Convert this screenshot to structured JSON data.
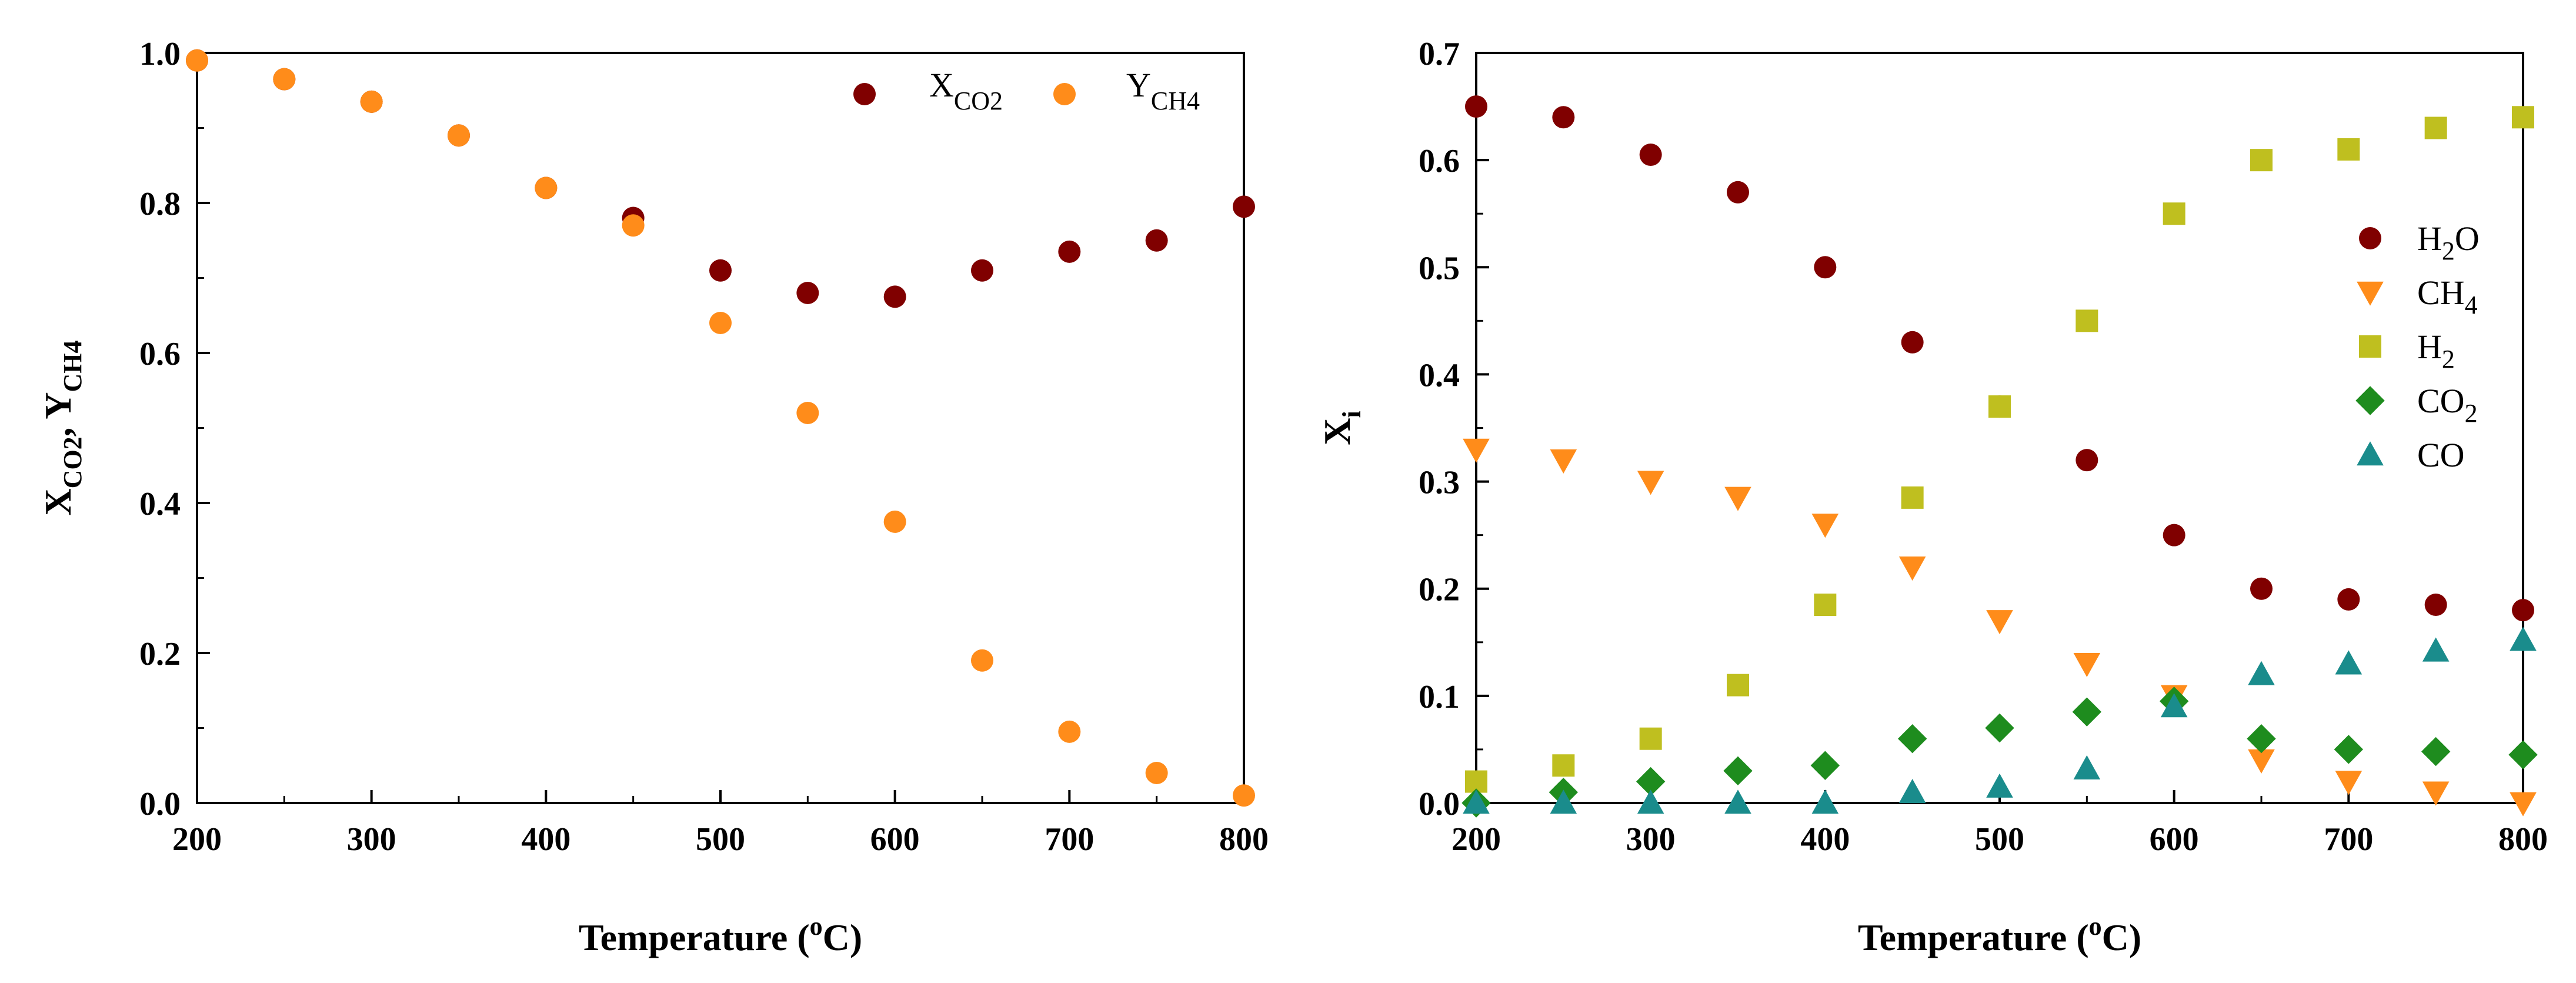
{
  "chart_data": [
    {
      "id": "left",
      "type": "scatter",
      "title": "",
      "xlabel_main": "Temperature (",
      "xlabel_sup": "o",
      "xlabel_end": "C)",
      "ylabel_parts": [
        {
          "t": "X",
          "sub": false
        },
        {
          "t": "CO",
          "sub": true
        },
        {
          "t": "2",
          "sub": true
        },
        {
          "t": ", Y",
          "sub": false
        },
        {
          "t": "CH",
          "sub": true
        },
        {
          "t": "4",
          "sub": true
        }
      ],
      "xlim": [
        200,
        800
      ],
      "ylim": [
        0,
        1.0
      ],
      "xticks": [
        200,
        300,
        400,
        500,
        600,
        700,
        800
      ],
      "yticks": [
        0.0,
        0.2,
        0.4,
        0.6,
        0.8,
        1.0
      ],
      "ytick_labels": [
        "0.0",
        "0.2",
        "0.4",
        "0.6",
        "0.8",
        "1.0"
      ],
      "xtick_labels": [
        "200",
        "300",
        "400",
        "500",
        "600",
        "700",
        "800"
      ],
      "legend_placement": "top-right, horizontal",
      "series": [
        {
          "name": "X_CO2",
          "legend_main": "X",
          "legend_sub": "CO2",
          "marker": "circle",
          "color": "#800000",
          "x": [
            200,
            250,
            300,
            350,
            400,
            450,
            500,
            550,
            600,
            650,
            700,
            750,
            800
          ],
          "y": [
            0.99,
            0.965,
            0.935,
            0.89,
            0.82,
            0.78,
            0.71,
            0.68,
            0.675,
            0.71,
            0.735,
            0.75,
            0.795
          ]
        },
        {
          "name": "Y_CH4",
          "legend_main": "Y",
          "legend_sub": "CH4",
          "marker": "circle",
          "color": "#FF8C1A",
          "x": [
            200,
            250,
            300,
            350,
            400,
            450,
            500,
            550,
            600,
            650,
            700,
            750,
            800
          ],
          "y": [
            0.99,
            0.965,
            0.935,
            0.89,
            0.82,
            0.77,
            0.64,
            0.52,
            0.375,
            0.19,
            0.095,
            0.04,
            0.01
          ]
        }
      ]
    },
    {
      "id": "right",
      "type": "scatter",
      "title": "",
      "xlabel_main": "Temperature (",
      "xlabel_sup": "o",
      "xlabel_end": "C)",
      "ylabel_parts": [
        {
          "t": "X",
          "sub": false
        },
        {
          "t": "i",
          "sub": true
        }
      ],
      "xlim": [
        200,
        800
      ],
      "ylim": [
        0,
        0.7
      ],
      "xticks": [
        200,
        300,
        400,
        500,
        600,
        700,
        800
      ],
      "yticks": [
        0.0,
        0.1,
        0.2,
        0.3,
        0.4,
        0.5,
        0.6,
        0.7
      ],
      "ytick_labels": [
        "0.0",
        "0.1",
        "0.2",
        "0.3",
        "0.4",
        "0.5",
        "0.6",
        "0.7"
      ],
      "xtick_labels": [
        "200",
        "300",
        "400",
        "500",
        "600",
        "700",
        "800"
      ],
      "legend_placement": "right, vertical",
      "series": [
        {
          "name": "H2O",
          "legend_main": "H",
          "legend_sub": "2",
          "legend_end": "O",
          "marker": "circle",
          "color": "#800000",
          "x": [
            200,
            250,
            300,
            350,
            400,
            450,
            500,
            550,
            600,
            650,
            700,
            750,
            800
          ],
          "y": [
            0.65,
            0.64,
            0.605,
            0.57,
            0.5,
            0.43,
            0.37,
            0.32,
            0.25,
            0.2,
            0.19,
            0.185,
            0.18
          ]
        },
        {
          "name": "CH4",
          "legend_main": "CH",
          "legend_sub": "4",
          "legend_end": "",
          "marker": "triangle-down",
          "color": "#FF8C1A",
          "x": [
            200,
            250,
            300,
            350,
            400,
            450,
            500,
            550,
            600,
            650,
            700,
            750,
            800
          ],
          "y": [
            0.33,
            0.32,
            0.3,
            0.285,
            0.26,
            0.22,
            0.17,
            0.13,
            0.1,
            0.04,
            0.02,
            0.01,
            0.0
          ]
        },
        {
          "name": "H2",
          "legend_main": "H",
          "legend_sub": "2",
          "legend_end": "",
          "marker": "square",
          "color": "#BFBF1F",
          "x": [
            200,
            250,
            300,
            350,
            400,
            450,
            500,
            550,
            600,
            650,
            700,
            750,
            800
          ],
          "y": [
            0.02,
            0.035,
            0.06,
            0.11,
            0.185,
            0.285,
            0.37,
            0.45,
            0.55,
            0.6,
            0.61,
            0.63,
            0.64
          ]
        },
        {
          "name": "CO2",
          "legend_main": "CO",
          "legend_sub": "2",
          "legend_end": "",
          "marker": "diamond",
          "color": "#1E8C1E",
          "x": [
            200,
            250,
            300,
            350,
            400,
            450,
            500,
            550,
            600,
            650,
            700,
            750,
            800
          ],
          "y": [
            0.0,
            0.01,
            0.02,
            0.03,
            0.035,
            0.06,
            0.07,
            0.085,
            0.095,
            0.06,
            0.05,
            0.048,
            0.045
          ]
        },
        {
          "name": "CO",
          "legend_main": "CO",
          "legend_sub": "",
          "legend_end": "",
          "marker": "triangle-up",
          "color": "#1A8C8C",
          "x": [
            200,
            250,
            300,
            350,
            400,
            450,
            500,
            550,
            600,
            650,
            700,
            750,
            800
          ],
          "y": [
            0.0,
            0.0,
            0.0,
            0.0,
            0.0,
            0.01,
            0.015,
            0.032,
            0.09,
            0.12,
            0.13,
            0.142,
            0.152
          ]
        }
      ]
    }
  ]
}
